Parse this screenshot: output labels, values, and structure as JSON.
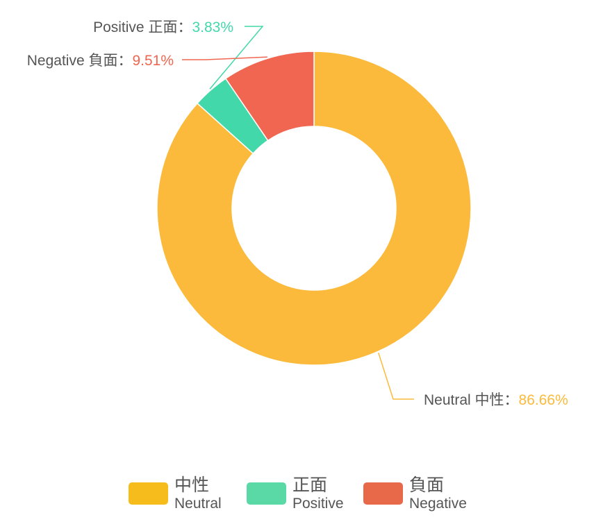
{
  "chart_data": {
    "type": "pie",
    "variant": "donut",
    "slices": [
      {
        "name": "Neutral 中性",
        "value": 86.66,
        "display": "86.66%",
        "color": "#FBBA3B"
      },
      {
        "name": "Positive 正面",
        "value": 3.83,
        "display": "3.83%",
        "color": "#43D8A9"
      },
      {
        "name": "Negative 負面",
        "value": 9.51,
        "display": "9.51%",
        "color": "#F06650"
      }
    ],
    "separator": "：",
    "legend": {
      "placement": "bottom",
      "items": [
        {
          "cn": "中性",
          "en": "Neutral",
          "color": "#F5BC1C"
        },
        {
          "cn": "正面",
          "en": "Positive",
          "color": "#5AD8A6"
        },
        {
          "cn": "負面",
          "en": "Negative",
          "color": "#E8684A"
        }
      ]
    }
  }
}
